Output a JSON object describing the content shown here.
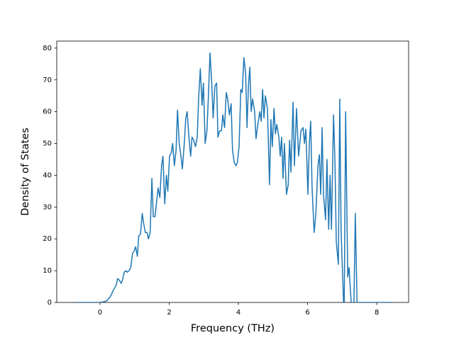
{
  "chart_data": {
    "type": "line",
    "xlabel": "Frequency (THz)",
    "ylabel": "Density of States",
    "xlim": [
      -1.25,
      8.92
    ],
    "ylim": [
      0,
      82.2
    ],
    "xticks": [
      0,
      2,
      4,
      6,
      8
    ],
    "yticks": [
      0,
      10,
      20,
      30,
      40,
      50,
      60,
      70,
      80
    ],
    "grid": false,
    "series": [
      {
        "color": "#1f77b4",
        "x": [
          -0.75,
          0.0,
          0.05,
          0.09,
          0.14,
          0.19,
          0.23,
          0.28,
          0.33,
          0.37,
          0.42,
          0.47,
          0.51,
          0.56,
          0.61,
          0.65,
          0.7,
          0.75,
          0.79,
          0.84,
          0.89,
          0.94,
          0.98,
          1.03,
          1.08,
          1.12,
          1.17,
          1.22,
          1.26,
          1.31,
          1.36,
          1.4,
          1.45,
          1.5,
          1.54,
          1.59,
          1.64,
          1.68,
          1.73,
          1.78,
          1.82,
          1.87,
          1.92,
          1.96,
          2.01,
          2.06,
          2.1,
          2.15,
          2.2,
          2.24,
          2.29,
          2.34,
          2.38,
          2.43,
          2.48,
          2.52,
          2.57,
          2.62,
          2.66,
          2.71,
          2.76,
          2.81,
          2.85,
          2.9,
          2.95,
          2.99,
          3.04,
          3.09,
          3.13,
          3.18,
          3.23,
          3.27,
          3.32,
          3.37,
          3.41,
          3.46,
          3.51,
          3.55,
          3.6,
          3.65,
          3.69,
          3.74,
          3.79,
          3.83,
          3.88,
          3.93,
          3.97,
          4.02,
          4.07,
          4.11,
          4.16,
          4.21,
          4.25,
          4.29,
          4.33,
          4.37,
          4.41,
          4.47,
          4.51,
          4.55,
          4.62,
          4.66,
          4.7,
          4.74,
          4.78,
          4.84,
          4.9,
          4.94,
          4.98,
          5.03,
          5.07,
          5.11,
          5.17,
          5.21,
          5.25,
          5.29,
          5.33,
          5.39,
          5.44,
          5.48,
          5.52,
          5.58,
          5.62,
          5.68,
          5.74,
          5.81,
          5.87,
          5.91,
          5.95,
          6.01,
          6.05,
          6.09,
          6.13,
          6.19,
          6.24,
          6.3,
          6.34,
          6.38,
          6.42,
          6.46,
          6.52,
          6.56,
          6.61,
          6.65,
          6.69,
          6.75,
          6.79,
          6.83,
          6.89,
          6.93,
          6.97,
          7.04,
          7.06,
          7.1,
          7.16,
          7.2,
          7.26,
          7.34,
          7.38,
          7.43,
          8.47
        ],
        "values": [
          0,
          0,
          0.1,
          0.2,
          0.3,
          0.5,
          1,
          1.5,
          2.5,
          3.5,
          4.5,
          5.5,
          7.5,
          7,
          6,
          7,
          9.5,
          10,
          9.5,
          10,
          11,
          15.5,
          16,
          17.5,
          14.5,
          21,
          21.5,
          28,
          25,
          22,
          22,
          20,
          22,
          39,
          27,
          27,
          32,
          36,
          33,
          43,
          46,
          31,
          40,
          35,
          46,
          47,
          50,
          43,
          48,
          60.5,
          50,
          46,
          42,
          49,
          58,
          60,
          52,
          46,
          52,
          51,
          49,
          52,
          64,
          73.5,
          62,
          69,
          50,
          54,
          64,
          78.5,
          69,
          58,
          68,
          69,
          52,
          54,
          54,
          59,
          55,
          66,
          64,
          59,
          62.5,
          48,
          44,
          43,
          44,
          49,
          67,
          66,
          77,
          72,
          55,
          68,
          74,
          60,
          64,
          60,
          51.5,
          55,
          60,
          57,
          67,
          58,
          65,
          61,
          37,
          57.5,
          49,
          61,
          53,
          56,
          52,
          46,
          52,
          39,
          50,
          34,
          37,
          51,
          41,
          63,
          43,
          61,
          46,
          54,
          55,
          50,
          54.5,
          34,
          50,
          57,
          36,
          22,
          28,
          43,
          46.5,
          34,
          55,
          34,
          26,
          45,
          23,
          40,
          23,
          59,
          45,
          19,
          12,
          64,
          22,
          0,
          0,
          60,
          8,
          11,
          0,
          0,
          28,
          0,
          0
        ]
      }
    ]
  }
}
